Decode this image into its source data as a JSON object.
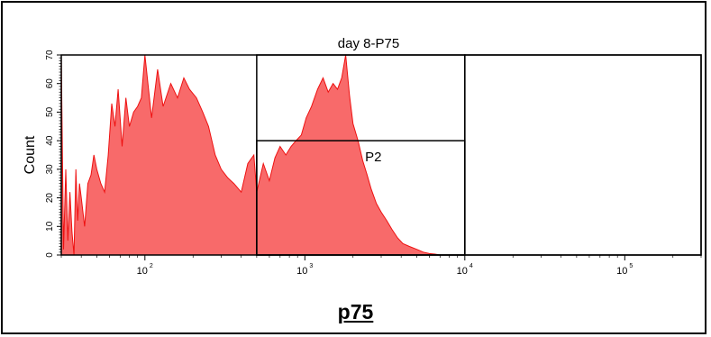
{
  "chart_data": {
    "type": "area",
    "title": "day 8-P75",
    "ylabel": "Count",
    "xlabel": "",
    "x_scale": "log",
    "xlim": [
      30,
      300000
    ],
    "ylim": [
      0,
      70
    ],
    "x_ticks": [
      {
        "value": 100,
        "base": "10",
        "exp": "2"
      },
      {
        "value": 1000,
        "base": "10",
        "exp": "3"
      },
      {
        "value": 10000,
        "base": "10",
        "exp": "4"
      },
      {
        "value": 100000,
        "base": "10",
        "exp": "5"
      }
    ],
    "y_ticks": [
      0,
      10,
      20,
      30,
      40,
      50,
      60,
      70
    ],
    "gates": [
      {
        "name": "",
        "x_range": [
          500,
          10000
        ],
        "y_range": [
          0,
          70
        ]
      },
      {
        "name": "",
        "x_range": [
          10000,
          300000
        ],
        "y_range": [
          0,
          70
        ]
      },
      {
        "name": "P2",
        "x_range": [
          500,
          10000
        ],
        "y_range": [
          0,
          40
        ]
      }
    ],
    "series": [
      {
        "fill_color": "#f86a6a",
        "line_color": "#ee1111",
        "x": [
          30,
          31,
          32,
          33,
          34,
          35,
          36,
          37,
          38,
          39,
          40,
          42,
          44,
          46,
          48,
          50,
          53,
          56,
          59,
          62,
          65,
          68,
          72,
          76,
          80,
          85,
          90,
          95,
          100,
          110,
          120,
          130,
          145,
          160,
          175,
          190,
          210,
          230,
          250,
          275,
          300,
          330,
          360,
          400,
          440,
          480,
          500,
          550,
          600,
          650,
          700,
          760,
          820,
          880,
          950,
          1020,
          1100,
          1200,
          1300,
          1400,
          1500,
          1600,
          1700,
          1800,
          1900,
          2000,
          2150,
          2300,
          2450,
          2600,
          2800,
          3000,
          3250,
          3500,
          3800,
          4100,
          4500,
          5000,
          5500,
          6000,
          6500,
          7000
        ],
        "values": [
          70,
          2,
          30,
          5,
          22,
          8,
          0,
          30,
          12,
          25,
          20,
          10,
          25,
          28,
          35,
          30,
          25,
          22,
          35,
          53,
          45,
          58,
          38,
          55,
          45,
          50,
          52,
          55,
          70,
          48,
          65,
          52,
          60,
          55,
          62,
          58,
          55,
          50,
          45,
          35,
          30,
          27,
          25,
          22,
          32,
          35,
          22,
          32,
          26,
          34,
          38,
          35,
          38,
          40,
          42,
          48,
          52,
          58,
          62,
          57,
          60,
          58,
          62,
          70,
          56,
          46,
          40,
          33,
          28,
          23,
          18,
          15,
          12,
          9,
          6,
          4,
          3,
          2,
          1,
          0.5,
          0.3,
          0
        ]
      }
    ]
  },
  "caption": "p75"
}
